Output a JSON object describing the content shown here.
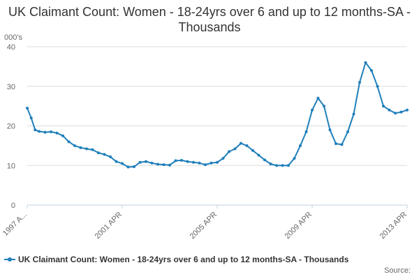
{
  "title": "UK Claimant Count: Women - 18-24yrs over 6 and up to 12 months-SA - Thousands",
  "source_label": "Source:",
  "colors": {
    "series": "#1f7fba",
    "grid": "#dddddd",
    "axis": "#c0d0e0"
  },
  "chart_data": {
    "type": "line",
    "title": "UK Claimant Count: Women - 18-24yrs over 6 and up to 12 months-SA - Thousands",
    "ylabel": "000's",
    "ylim": [
      0,
      40
    ],
    "yticks": [
      0,
      10,
      20,
      30,
      40
    ],
    "xticks": [
      "1997 A...",
      "2001 APR",
      "2005 APR",
      "2009 APR",
      "2013 APR"
    ],
    "grid": "horizontal",
    "legend_position": "bottom",
    "series": [
      {
        "name": "UK Claimant Count: Women - 18-24yrs over 6 and up to 12 months-SA - Thousands",
        "x": [
          "1997-04",
          "1997-06",
          "1997-08",
          "1997-10",
          "1998-01",
          "1998-04",
          "1998-07",
          "1998-10",
          "1999-01",
          "1999-04",
          "1999-07",
          "1999-10",
          "2000-01",
          "2000-04",
          "2000-07",
          "2000-10",
          "2001-01",
          "2001-04",
          "2001-07",
          "2001-10",
          "2002-01",
          "2002-04",
          "2002-07",
          "2002-10",
          "2003-01",
          "2003-04",
          "2003-07",
          "2003-10",
          "2004-01",
          "2004-04",
          "2004-07",
          "2004-10",
          "2005-01",
          "2005-04",
          "2005-07",
          "2005-10",
          "2006-01",
          "2006-04",
          "2006-07",
          "2006-10",
          "2007-01",
          "2007-04",
          "2007-07",
          "2007-10",
          "2008-01",
          "2008-04",
          "2008-07",
          "2008-10",
          "2009-01",
          "2009-04",
          "2009-07",
          "2009-10",
          "2010-01",
          "2010-04",
          "2010-07",
          "2010-10",
          "2011-01",
          "2011-04",
          "2011-07",
          "2011-10",
          "2012-01",
          "2012-04",
          "2012-07",
          "2012-10",
          "2013-01",
          "2013-04"
        ],
        "values": [
          24.5,
          22.0,
          19.0,
          18.6,
          18.4,
          18.5,
          18.2,
          17.5,
          16.0,
          15.0,
          14.5,
          14.2,
          14.0,
          13.2,
          12.8,
          12.2,
          11.0,
          10.5,
          9.6,
          9.7,
          10.8,
          11.0,
          10.6,
          10.3,
          10.2,
          10.1,
          11.2,
          11.3,
          11.0,
          10.8,
          10.6,
          10.2,
          10.6,
          10.8,
          11.8,
          13.5,
          14.2,
          15.6,
          15.0,
          13.8,
          12.6,
          11.4,
          10.4,
          10.0,
          10.0,
          10.0,
          11.8,
          15.0,
          18.5,
          24.0,
          27.0,
          25.0,
          19.0,
          15.5,
          15.3,
          18.5,
          23.0,
          31.0,
          36.0,
          34.0,
          30.0,
          25.0,
          24.0,
          23.2,
          23.5,
          24.0
        ]
      }
    ]
  }
}
